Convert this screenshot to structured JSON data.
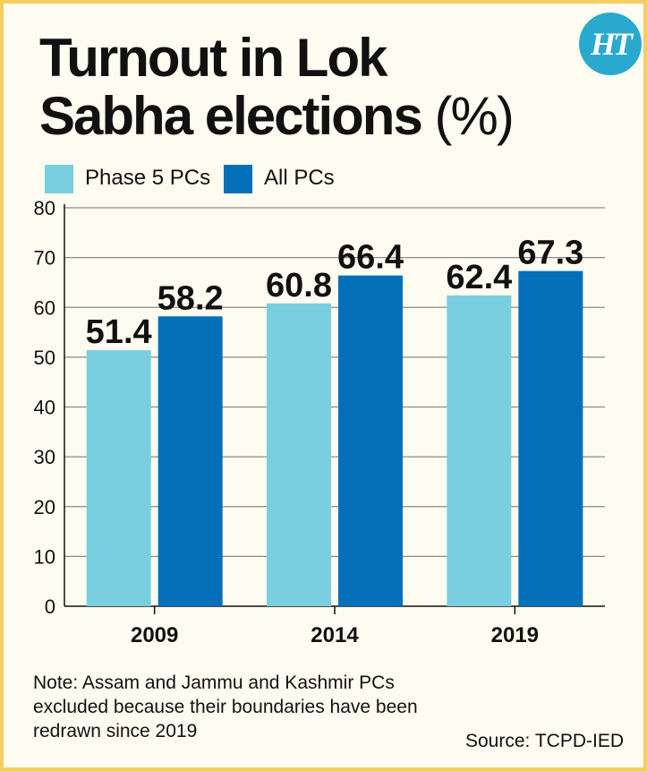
{
  "header": {
    "title_main": "Turnout in Lok Sabha elections",
    "title_unit": "(%)",
    "logo_text": "HT"
  },
  "chart_data": {
    "type": "bar",
    "categories": [
      "2009",
      "2014",
      "2019"
    ],
    "series": [
      {
        "name": "Phase 5 PCs",
        "values": [
          51.4,
          60.8,
          62.4
        ],
        "color": "#79cfe0"
      },
      {
        "name": "All PCs",
        "values": [
          58.2,
          66.4,
          67.3
        ],
        "color": "#0470ba"
      }
    ],
    "ylim": [
      0,
      80
    ],
    "yticks": [
      0,
      10,
      20,
      30,
      40,
      50,
      60,
      70,
      80
    ],
    "grid": true,
    "legend_position": "top-left"
  },
  "footer": {
    "note": "Note: Assam and Jammu and Kashmir PCs excluded because their boundaries have been redrawn since 2019",
    "source": "Source: TCPD-IED"
  },
  "colors": {
    "background": "#fefcf0",
    "border": "#f3cf63",
    "logo": "#2aa9cf",
    "gridline": "#8a8a8a"
  }
}
